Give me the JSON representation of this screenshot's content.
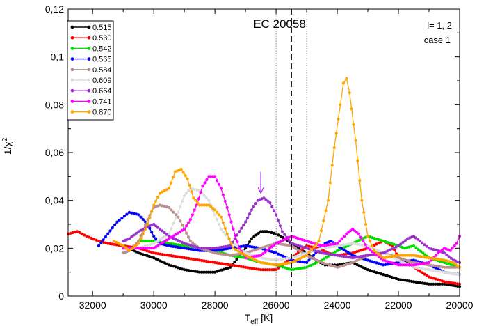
{
  "chart_data": {
    "type": "line",
    "title": "EC 20058",
    "xlabel_main": "T",
    "xlabel_sub": "eff",
    "xlabel_unit": " [K]",
    "ylabel_main": "1/χ",
    "ylabel_sup": "2",
    "annotations": [
      "l= 1, 2",
      "case 1"
    ],
    "xlim": [
      32800,
      20000
    ],
    "ylim": [
      0,
      0.12
    ],
    "x_ticks": [
      32000,
      30000,
      28000,
      26000,
      24000,
      22000,
      20000
    ],
    "x_tick_labels": [
      "32000",
      "30000",
      "28000",
      "26000",
      "24000",
      "22000",
      "20000"
    ],
    "y_ticks": [
      0,
      0.02,
      0.04,
      0.06,
      0.08,
      0.1,
      0.12
    ],
    "y_tick_labels": [
      "0",
      "0,02",
      "0,04",
      "0,06",
      "0,08",
      "0,1",
      "0,12"
    ],
    "vlines": [
      {
        "x": 25500,
        "style": "dashed"
      },
      {
        "x": 26000,
        "style": "dotted"
      },
      {
        "x": 25000,
        "style": "dotted"
      }
    ],
    "arrow": {
      "x": 26500,
      "y_from": 0.052,
      "y_to": 0.043,
      "color": "#a020f0"
    },
    "grid": false,
    "legend_position": "top-left",
    "series": [
      {
        "name": "0.515",
        "color": "#000000",
        "points": [
          [
            31000,
            0.021
          ],
          [
            30500,
            0.018
          ],
          [
            30000,
            0.016
          ],
          [
            29500,
            0.013
          ],
          [
            29000,
            0.011
          ],
          [
            28500,
            0.01
          ],
          [
            28000,
            0.01
          ],
          [
            27500,
            0.012
          ],
          [
            27000,
            0.02
          ],
          [
            26800,
            0.024
          ],
          [
            26500,
            0.027
          ],
          [
            26300,
            0.027
          ],
          [
            26000,
            0.026
          ],
          [
            25700,
            0.024
          ],
          [
            25400,
            0.021
          ],
          [
            25000,
            0.018
          ],
          [
            24700,
            0.015
          ],
          [
            24400,
            0.013
          ],
          [
            24000,
            0.013
          ],
          [
            23500,
            0.014
          ],
          [
            23000,
            0.011
          ],
          [
            22500,
            0.009
          ],
          [
            22000,
            0.007
          ],
          [
            21500,
            0.006
          ],
          [
            21000,
            0.005
          ],
          [
            20500,
            0.005
          ],
          [
            20000,
            0.004
          ]
        ]
      },
      {
        "name": "0.530",
        "color": "#ff0000",
        "points": [
          [
            32800,
            0.026
          ],
          [
            32500,
            0.027
          ],
          [
            32200,
            0.025
          ],
          [
            31800,
            0.023
          ],
          [
            31500,
            0.022
          ],
          [
            31000,
            0.021
          ],
          [
            30500,
            0.02
          ],
          [
            30000,
            0.018
          ],
          [
            29500,
            0.017
          ],
          [
            29000,
            0.016
          ],
          [
            28500,
            0.015
          ],
          [
            28000,
            0.014
          ],
          [
            27500,
            0.013
          ],
          [
            27000,
            0.012
          ],
          [
            26500,
            0.011
          ],
          [
            26000,
            0.011
          ],
          [
            25500,
            0.016
          ],
          [
            25200,
            0.019
          ],
          [
            25000,
            0.021
          ],
          [
            24600,
            0.02
          ],
          [
            24300,
            0.018
          ],
          [
            24000,
            0.017
          ],
          [
            23500,
            0.018
          ],
          [
            23000,
            0.02
          ],
          [
            22500,
            0.023
          ],
          [
            22200,
            0.021
          ],
          [
            22000,
            0.016
          ],
          [
            21500,
            0.012
          ],
          [
            21000,
            0.008
          ],
          [
            20500,
            0.006
          ],
          [
            20000,
            0.005
          ]
        ]
      },
      {
        "name": "0.542",
        "color": "#00dd00",
        "points": [
          [
            30500,
            0.023
          ],
          [
            30000,
            0.023
          ],
          [
            29500,
            0.022
          ],
          [
            29000,
            0.021
          ],
          [
            28500,
            0.02
          ],
          [
            28000,
            0.019
          ],
          [
            27500,
            0.017
          ],
          [
            27000,
            0.016
          ],
          [
            26500,
            0.014
          ],
          [
            26000,
            0.013
          ],
          [
            25500,
            0.011
          ],
          [
            25000,
            0.012
          ],
          [
            24500,
            0.015
          ],
          [
            24000,
            0.019
          ],
          [
            23500,
            0.022
          ],
          [
            23000,
            0.025
          ],
          [
            22500,
            0.023
          ],
          [
            22000,
            0.021
          ],
          [
            21800,
            0.02
          ],
          [
            21500,
            0.021
          ],
          [
            21200,
            0.018
          ],
          [
            21000,
            0.016
          ],
          [
            20500,
            0.014
          ],
          [
            20000,
            0.012
          ]
        ]
      },
      {
        "name": "0.565",
        "color": "#0000ff",
        "points": [
          [
            31800,
            0.021
          ],
          [
            31500,
            0.026
          ],
          [
            31200,
            0.031
          ],
          [
            30800,
            0.035
          ],
          [
            30500,
            0.034
          ],
          [
            30200,
            0.03
          ],
          [
            30000,
            0.025
          ],
          [
            29800,
            0.022
          ],
          [
            29500,
            0.021
          ],
          [
            29000,
            0.02
          ],
          [
            28500,
            0.019
          ],
          [
            28000,
            0.019
          ],
          [
            27500,
            0.02
          ],
          [
            27000,
            0.021
          ],
          [
            26500,
            0.02
          ],
          [
            26000,
            0.018
          ],
          [
            25500,
            0.015
          ],
          [
            25000,
            0.014
          ],
          [
            24700,
            0.018
          ],
          [
            24400,
            0.022
          ],
          [
            24200,
            0.023
          ],
          [
            24000,
            0.021
          ],
          [
            23500,
            0.017
          ],
          [
            23000,
            0.015
          ],
          [
            22500,
            0.013
          ],
          [
            22000,
            0.014
          ],
          [
            21500,
            0.015
          ],
          [
            21000,
            0.013
          ],
          [
            20500,
            0.01
          ],
          [
            20000,
            0.009
          ]
        ]
      },
      {
        "name": "0.584",
        "color": "#bc8f8f",
        "points": [
          [
            31000,
            0.018
          ],
          [
            30800,
            0.019
          ],
          [
            30500,
            0.023
          ],
          [
            30200,
            0.032
          ],
          [
            30000,
            0.037
          ],
          [
            29800,
            0.038
          ],
          [
            29500,
            0.037
          ],
          [
            29200,
            0.033
          ],
          [
            29000,
            0.028
          ],
          [
            28800,
            0.023
          ],
          [
            28500,
            0.02
          ],
          [
            28000,
            0.018
          ],
          [
            27500,
            0.017
          ],
          [
            27000,
            0.018
          ],
          [
            26500,
            0.02
          ],
          [
            26000,
            0.022
          ],
          [
            25500,
            0.021
          ],
          [
            25000,
            0.017
          ],
          [
            24500,
            0.014
          ],
          [
            24000,
            0.012
          ],
          [
            23500,
            0.014
          ],
          [
            23000,
            0.017
          ],
          [
            22500,
            0.018
          ],
          [
            22000,
            0.016
          ],
          [
            21500,
            0.014
          ],
          [
            21000,
            0.013
          ],
          [
            20500,
            0.012
          ],
          [
            20000,
            0.012
          ]
        ]
      },
      {
        "name": "0.609",
        "color": "#dddddd",
        "points": [
          [
            30500,
            0.02
          ],
          [
            30000,
            0.022
          ],
          [
            29500,
            0.026
          ],
          [
            29200,
            0.035
          ],
          [
            29000,
            0.042
          ],
          [
            28800,
            0.045
          ],
          [
            28500,
            0.044
          ],
          [
            28200,
            0.04
          ],
          [
            28000,
            0.034
          ],
          [
            27800,
            0.028
          ],
          [
            27500,
            0.023
          ],
          [
            27000,
            0.018
          ],
          [
            26500,
            0.016
          ],
          [
            26000,
            0.015
          ],
          [
            25500,
            0.016
          ],
          [
            25000,
            0.018
          ],
          [
            24500,
            0.02
          ],
          [
            24000,
            0.021
          ],
          [
            23500,
            0.022
          ],
          [
            23000,
            0.021
          ],
          [
            22500,
            0.018
          ],
          [
            22000,
            0.015
          ],
          [
            21500,
            0.012
          ],
          [
            21000,
            0.011
          ],
          [
            20500,
            0.01
          ],
          [
            20000,
            0.009
          ]
        ]
      },
      {
        "name": "0.664",
        "color": "#9932cc",
        "points": [
          [
            31000,
            0.023
          ],
          [
            30800,
            0.024
          ],
          [
            30500,
            0.027
          ],
          [
            30200,
            0.029
          ],
          [
            30000,
            0.03
          ],
          [
            29800,
            0.028
          ],
          [
            29500,
            0.025
          ],
          [
            29000,
            0.022
          ],
          [
            28500,
            0.02
          ],
          [
            28000,
            0.02
          ],
          [
            27500,
            0.021
          ],
          [
            27200,
            0.027
          ],
          [
            27000,
            0.031
          ],
          [
            26800,
            0.036
          ],
          [
            26600,
            0.04
          ],
          [
            26400,
            0.041
          ],
          [
            26200,
            0.039
          ],
          [
            26000,
            0.034
          ],
          [
            25800,
            0.027
          ],
          [
            25500,
            0.022
          ],
          [
            25000,
            0.02
          ],
          [
            24500,
            0.018
          ],
          [
            24000,
            0.017
          ],
          [
            23500,
            0.016
          ],
          [
            23000,
            0.017
          ],
          [
            22500,
            0.018
          ],
          [
            22000,
            0.021
          ],
          [
            21700,
            0.024
          ],
          [
            21500,
            0.025
          ],
          [
            21300,
            0.023
          ],
          [
            21000,
            0.02
          ],
          [
            20700,
            0.019
          ],
          [
            20500,
            0.018
          ],
          [
            20200,
            0.015
          ],
          [
            20000,
            0.014
          ]
        ]
      },
      {
        "name": "0.741",
        "color": "#ff00ff",
        "points": [
          [
            31000,
            0.02
          ],
          [
            30500,
            0.02
          ],
          [
            30000,
            0.02
          ],
          [
            29500,
            0.024
          ],
          [
            29000,
            0.028
          ],
          [
            28800,
            0.032
          ],
          [
            28600,
            0.038
          ],
          [
            28400,
            0.046
          ],
          [
            28200,
            0.05
          ],
          [
            28000,
            0.05
          ],
          [
            27800,
            0.045
          ],
          [
            27600,
            0.037
          ],
          [
            27400,
            0.028
          ],
          [
            27200,
            0.02
          ],
          [
            27000,
            0.016
          ],
          [
            26500,
            0.017
          ],
          [
            26000,
            0.022
          ],
          [
            25500,
            0.025
          ],
          [
            25000,
            0.023
          ],
          [
            24500,
            0.021
          ],
          [
            24000,
            0.022
          ],
          [
            23700,
            0.026
          ],
          [
            23500,
            0.028
          ],
          [
            23300,
            0.026
          ],
          [
            23000,
            0.02
          ],
          [
            22500,
            0.015
          ],
          [
            22000,
            0.013
          ],
          [
            21500,
            0.013
          ],
          [
            21000,
            0.014
          ],
          [
            20700,
            0.018
          ],
          [
            20500,
            0.02
          ],
          [
            20300,
            0.019
          ],
          [
            20100,
            0.022
          ],
          [
            20000,
            0.025
          ]
        ]
      },
      {
        "name": "0.870",
        "color": "#ffa500",
        "points": [
          [
            31300,
            0.023
          ],
          [
            31000,
            0.021
          ],
          [
            30800,
            0.019
          ],
          [
            30500,
            0.022
          ],
          [
            30200,
            0.03
          ],
          [
            30000,
            0.038
          ],
          [
            29800,
            0.043
          ],
          [
            29500,
            0.045
          ],
          [
            29300,
            0.052
          ],
          [
            29100,
            0.053
          ],
          [
            28900,
            0.049
          ],
          [
            28700,
            0.041
          ],
          [
            28500,
            0.038
          ],
          [
            28200,
            0.038
          ],
          [
            28000,
            0.036
          ],
          [
            27800,
            0.033
          ],
          [
            27600,
            0.026
          ],
          [
            27400,
            0.02
          ],
          [
            27000,
            0.017
          ],
          [
            26500,
            0.014
          ],
          [
            26000,
            0.013
          ],
          [
            25500,
            0.014
          ],
          [
            25000,
            0.017
          ],
          [
            24600,
            0.023
          ],
          [
            24300,
            0.04
          ],
          [
            24100,
            0.062
          ],
          [
            23900,
            0.08
          ],
          [
            23800,
            0.089
          ],
          [
            23700,
            0.091
          ],
          [
            23600,
            0.085
          ],
          [
            23400,
            0.065
          ],
          [
            23200,
            0.04
          ],
          [
            23000,
            0.025
          ],
          [
            22800,
            0.019
          ],
          [
            22500,
            0.016
          ],
          [
            22000,
            0.017
          ],
          [
            21500,
            0.017
          ],
          [
            21000,
            0.016
          ],
          [
            20500,
            0.015
          ],
          [
            20200,
            0.014
          ],
          [
            20000,
            0.012
          ]
        ]
      }
    ]
  }
}
